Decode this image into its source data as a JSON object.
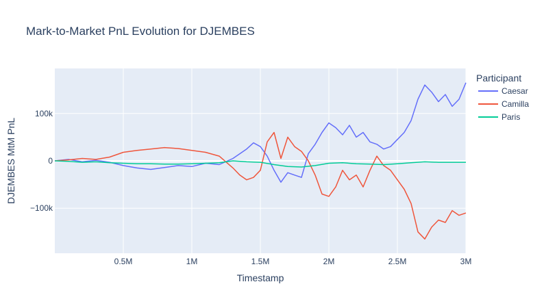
{
  "chart_data": {
    "type": "line",
    "title": "Mark-to-Market PnL Evolution for DJEMBES",
    "xlabel": "Timestamp",
    "ylabel": "DJEMBES MtM PnL",
    "xlim": [
      0,
      3000000
    ],
    "ylim": [
      -195000,
      195000
    ],
    "x_ticks": [
      500000,
      1000000,
      1500000,
      2000000,
      2500000,
      3000000
    ],
    "x_tick_labels": [
      "0.5M",
      "1M",
      "1.5M",
      "2M",
      "2.5M",
      "3M"
    ],
    "y_ticks": [
      -100000,
      0,
      100000
    ],
    "y_tick_labels": [
      "−100k",
      "0",
      "100k"
    ],
    "grid": true,
    "legend_title": "Participant",
    "legend_position": "right",
    "colors": {
      "plot_bg": "#e5ecf6",
      "grid": "#ffffff",
      "text": "#2a3f5f"
    },
    "series": [
      {
        "name": "Caesar",
        "color": "#636efa",
        "x": [
          0,
          100000,
          200000,
          300000,
          400000,
          500000,
          600000,
          700000,
          800000,
          900000,
          1000000,
          1100000,
          1200000,
          1300000,
          1350000,
          1400000,
          1450000,
          1500000,
          1550000,
          1600000,
          1650000,
          1700000,
          1750000,
          1800000,
          1850000,
          1900000,
          1950000,
          2000000,
          2050000,
          2100000,
          2150000,
          2200000,
          2250000,
          2300000,
          2350000,
          2400000,
          2450000,
          2500000,
          2550000,
          2600000,
          2650000,
          2700000,
          2750000,
          2800000,
          2850000,
          2900000,
          2950000,
          3000000
        ],
        "values": [
          0,
          3000,
          -2000,
          1000,
          -3000,
          -10000,
          -15000,
          -18000,
          -14000,
          -10000,
          -12000,
          -5000,
          -8000,
          5000,
          15000,
          25000,
          38000,
          30000,
          10000,
          -20000,
          -45000,
          -25000,
          -30000,
          -35000,
          15000,
          35000,
          60000,
          80000,
          70000,
          55000,
          75000,
          50000,
          60000,
          40000,
          35000,
          25000,
          30000,
          45000,
          60000,
          85000,
          130000,
          160000,
          145000,
          125000,
          140000,
          115000,
          130000,
          165000
        ]
      },
      {
        "name": "Camilla",
        "color": "#ef553b",
        "x": [
          0,
          100000,
          200000,
          300000,
          400000,
          500000,
          600000,
          700000,
          800000,
          900000,
          1000000,
          1100000,
          1200000,
          1300000,
          1350000,
          1400000,
          1450000,
          1500000,
          1550000,
          1600000,
          1650000,
          1700000,
          1750000,
          1800000,
          1850000,
          1900000,
          1950000,
          2000000,
          2050000,
          2100000,
          2150000,
          2200000,
          2250000,
          2300000,
          2350000,
          2400000,
          2450000,
          2500000,
          2550000,
          2600000,
          2650000,
          2700000,
          2750000,
          2800000,
          2850000,
          2900000,
          2950000,
          3000000
        ],
        "values": [
          0,
          2000,
          5000,
          3000,
          8000,
          18000,
          22000,
          25000,
          28000,
          26000,
          22000,
          18000,
          10000,
          -15000,
          -30000,
          -40000,
          -35000,
          -20000,
          40000,
          60000,
          5000,
          50000,
          30000,
          20000,
          0,
          -30000,
          -70000,
          -75000,
          -55000,
          -20000,
          -40000,
          -30000,
          -55000,
          -20000,
          10000,
          -10000,
          -20000,
          -40000,
          -60000,
          -90000,
          -150000,
          -165000,
          -140000,
          -125000,
          -130000,
          -105000,
          -115000,
          -110000
        ]
      },
      {
        "name": "Paris",
        "color": "#00cc96",
        "x": [
          0,
          100000,
          200000,
          300000,
          400000,
          500000,
          600000,
          700000,
          800000,
          900000,
          1000000,
          1100000,
          1200000,
          1300000,
          1400000,
          1500000,
          1600000,
          1700000,
          1800000,
          1900000,
          2000000,
          2100000,
          2200000,
          2300000,
          2400000,
          2500000,
          2600000,
          2700000,
          2800000,
          2900000,
          3000000
        ],
        "values": [
          0,
          -1000,
          -3000,
          -2000,
          -4000,
          -5000,
          -6000,
          -6000,
          -7000,
          -7000,
          -6000,
          -5000,
          -4000,
          0,
          -2000,
          -3000,
          -8000,
          -12000,
          -13000,
          -10000,
          -5000,
          -4000,
          -6000,
          -7000,
          -8000,
          -6000,
          -4000,
          -2000,
          -3000,
          -3000,
          -3000
        ]
      }
    ]
  }
}
